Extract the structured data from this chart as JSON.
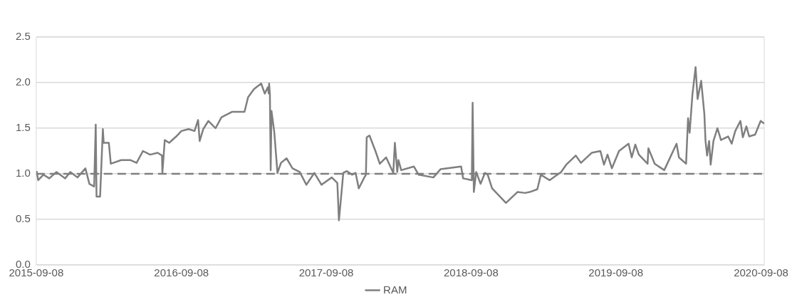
{
  "chart_data": {
    "type": "line",
    "x": [
      "2015-09-09",
      "2015-09-13",
      "2015-09-26",
      "2015-10-11",
      "2015-10-29",
      "2015-11-20",
      "2015-12-03",
      "2015-12-21",
      "2016-01-10",
      "2016-01-20",
      "2016-02-01",
      "2016-02-05",
      "2016-02-07",
      "2016-02-16",
      "2016-02-23",
      "2016-02-25",
      "2016-03-09",
      "2016-03-14",
      "2016-04-09",
      "2016-05-03",
      "2016-05-18",
      "2016-06-03",
      "2016-06-21",
      "2016-07-10",
      "2016-07-21",
      "2016-07-22",
      "2016-07-28",
      "2016-08-08",
      "2016-08-26",
      "2016-09-08",
      "2016-09-26",
      "2016-10-11",
      "2016-10-20",
      "2016-10-24",
      "2016-11-02",
      "2016-11-15",
      "2016-12-03",
      "2016-12-18",
      "2017-01-14",
      "2017-02-14",
      "2017-02-23",
      "2017-03-10",
      "2017-03-28",
      "2017-04-06",
      "2017-04-14",
      "2017-04-16",
      "2017-04-17",
      "2017-04-19",
      "2017-04-21",
      "2017-04-23",
      "2017-04-30",
      "2017-05-08",
      "2017-05-17",
      "2017-05-31",
      "2017-06-15",
      "2017-07-03",
      "2017-07-20",
      "2017-08-09",
      "2017-08-27",
      "2017-09-22",
      "2017-10-06",
      "2017-10-10",
      "2017-10-16",
      "2017-10-21",
      "2017-10-30",
      "2017-11-12",
      "2017-11-21",
      "2017-11-29",
      "2017-12-13",
      "2017-12-17",
      "2017-12-19",
      "2017-12-26",
      "2018-01-10",
      "2018-01-21",
      "2018-02-06",
      "2018-02-24",
      "2018-02-28",
      "2018-03-06",
      "2018-03-09",
      "2018-03-16",
      "2018-04-17",
      "2018-04-29",
      "2018-06-05",
      "2018-06-23",
      "2018-08-14",
      "2018-08-19",
      "2018-09-10",
      "2018-09-12",
      "2018-09-15",
      "2018-09-21",
      "2018-10-02",
      "2018-10-13",
      "2018-10-20",
      "2018-10-31",
      "2018-12-05",
      "2019-01-03",
      "2019-01-22",
      "2019-02-03",
      "2019-02-22",
      "2019-03-03",
      "2019-03-25",
      "2019-04-23",
      "2019-05-06",
      "2019-05-30",
      "2019-06-12",
      "2019-07-09",
      "2019-07-31",
      "2019-08-09",
      "2019-08-18",
      "2019-08-29",
      "2019-09-16",
      "2019-10-10",
      "2019-10-18",
      "2019-10-27",
      "2019-11-05",
      "2019-11-27",
      "2019-11-29",
      "2019-12-15",
      "2020-01-08",
      "2020-02-08",
      "2020-02-14",
      "2020-03-03",
      "2020-03-08",
      "2020-03-12",
      "2020-03-19",
      "2020-03-27",
      "2020-04-01",
      "2020-04-10",
      "2020-04-18",
      "2020-04-21",
      "2020-04-25",
      "2020-04-30",
      "2020-05-04",
      "2020-05-11",
      "2020-05-21",
      "2020-05-30",
      "2020-06-17",
      "2020-06-26",
      "2020-07-05",
      "2020-07-18",
      "2020-07-24",
      "2020-08-02",
      "2020-08-09",
      "2020-08-24",
      "2020-09-07",
      "2020-09-16"
    ],
    "series": [
      {
        "name": "RAM",
        "color": "#7f7f7f",
        "values": [
          1.03,
          0.93,
          0.99,
          0.95,
          1.02,
          0.95,
          1.02,
          0.96,
          1.06,
          0.89,
          0.86,
          1.54,
          0.75,
          0.75,
          1.49,
          1.34,
          1.34,
          1.11,
          1.15,
          1.15,
          1.12,
          1.25,
          1.21,
          1.23,
          1.2,
          1.01,
          1.37,
          1.34,
          1.41,
          1.47,
          1.49,
          1.47,
          1.59,
          1.36,
          1.49,
          1.58,
          1.5,
          1.62,
          1.68,
          1.68,
          1.84,
          1.93,
          1.99,
          1.88,
          1.95,
          1.88,
          1.99,
          1.87,
          1.04,
          1.69,
          1.46,
          1.01,
          1.12,
          1.17,
          1.06,
          1.02,
          0.88,
          1.01,
          0.88,
          0.96,
          0.9,
          0.49,
          0.77,
          1.01,
          1.03,
          0.99,
          1.01,
          0.84,
          0.96,
          0.99,
          1.4,
          1.42,
          1.25,
          1.11,
          1.18,
          1.01,
          1.34,
          1.02,
          1.15,
          1.04,
          1.08,
          0.99,
          0.96,
          1.05,
          1.08,
          0.95,
          0.93,
          1.78,
          0.8,
          1.02,
          0.89,
          1.01,
          0.99,
          0.84,
          0.68,
          0.8,
          0.79,
          0.8,
          0.83,
          0.99,
          0.93,
          1.02,
          1.1,
          1.2,
          1.12,
          1.23,
          1.25,
          1.1,
          1.21,
          1.06,
          1.25,
          1.33,
          1.18,
          1.32,
          1.21,
          1.11,
          1.28,
          1.11,
          1.04,
          1.33,
          1.18,
          1.11,
          1.61,
          1.45,
          1.87,
          2.17,
          1.82,
          2.02,
          1.66,
          1.36,
          1.2,
          1.36,
          1.1,
          1.36,
          1.5,
          1.37,
          1.41,
          1.33,
          1.47,
          1.58,
          1.4,
          1.52,
          1.41,
          1.43,
          1.58,
          1.55
        ]
      }
    ],
    "xlim": [
      "2015-09-08",
      "2020-09-16"
    ],
    "xticks": [
      {
        "value": "2015-09-08",
        "label": "2015-09-08"
      },
      {
        "value": "2016-09-08",
        "label": "2016-09-08"
      },
      {
        "value": "2017-09-08",
        "label": "2017-09-08"
      },
      {
        "value": "2018-09-08",
        "label": "2018-09-08"
      },
      {
        "value": "2019-09-08",
        "label": "2019-09-08"
      },
      {
        "value": "2020-09-08",
        "label": "2020-09-08"
      }
    ],
    "ylim": [
      0,
      2.5
    ],
    "yticks": [
      {
        "value": 0,
        "label": "0.0"
      },
      0.5,
      {
        "value": 1,
        "label": "1.0"
      },
      1.5,
      {
        "value": 2,
        "label": "2.0"
      },
      2.5
    ],
    "ref_lines": [
      {
        "axis": "y",
        "value": 1,
        "color": "#7f7f7f",
        "line_style": "dashed"
      }
    ],
    "grid": "y",
    "legend": "bottom",
    "marker": "none",
    "line_style": "solid"
  }
}
